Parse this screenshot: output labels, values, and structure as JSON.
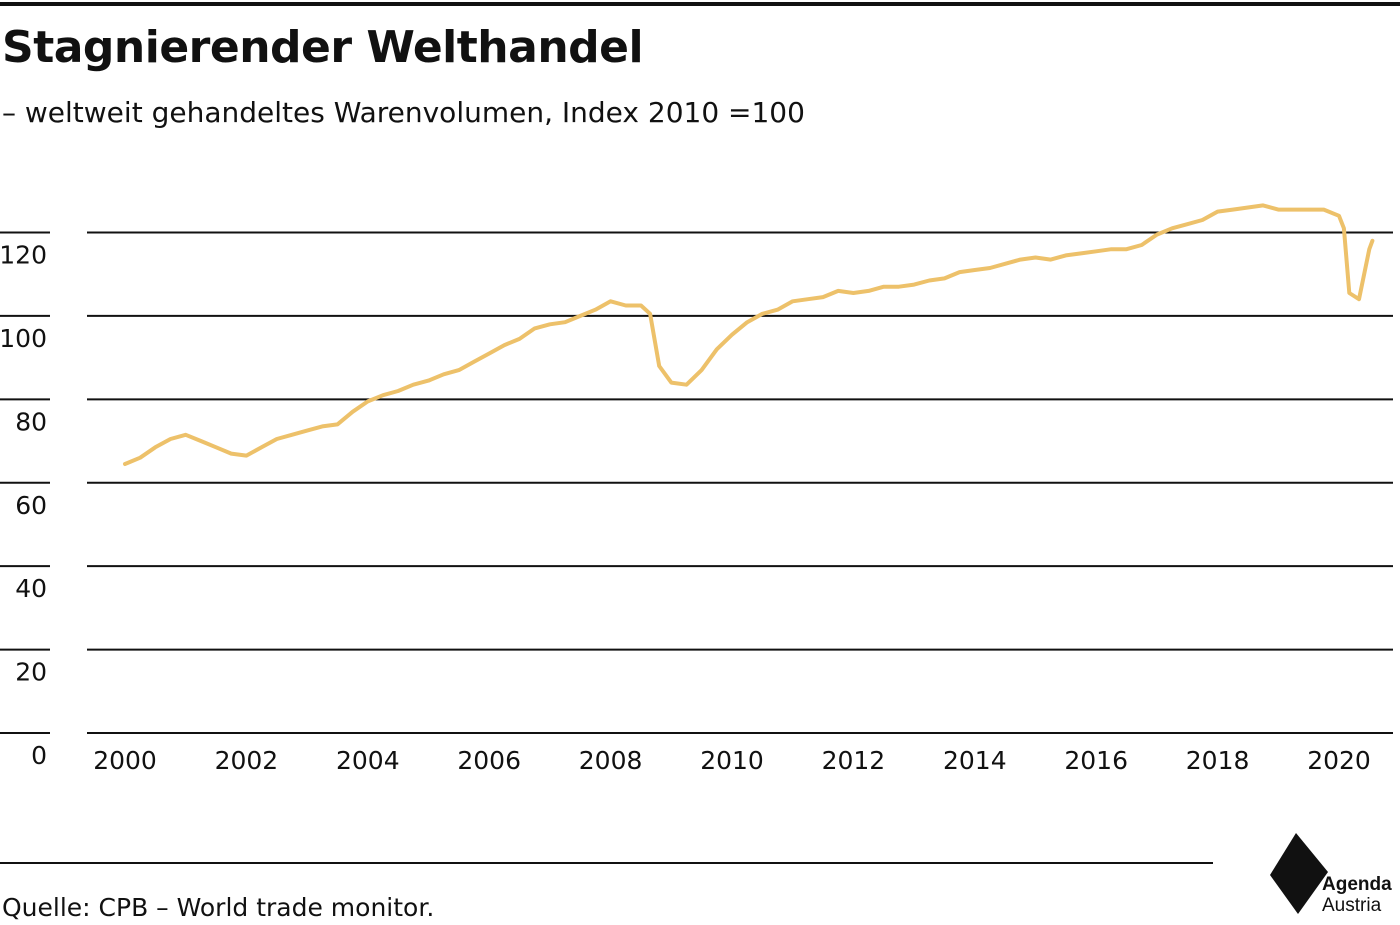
{
  "header": {
    "title": "Stagnierender Welthandel",
    "subtitle": "– weltweit gehandeltes Warenvolumen, Index 2010 =100"
  },
  "footer": {
    "source": "Quelle: CPB – World trade monitor."
  },
  "logo": {
    "line1": "Agenda",
    "line2": "Austria"
  },
  "colors": {
    "line": "#EDC16A",
    "grid": "#111111",
    "text": "#111111"
  },
  "chart_data": {
    "type": "line",
    "title": "Stagnierender Welthandel",
    "subtitle": "– weltweit gehandeltes Warenvolumen, Index 2010 =100",
    "xlabel": "",
    "ylabel": "",
    "xlim": [
      2000,
      2020.5
    ],
    "ylim": [
      0,
      130
    ],
    "yticks": [
      0,
      20,
      40,
      60,
      80,
      100,
      120
    ],
    "xticks": [
      2000,
      2002,
      2004,
      2006,
      2008,
      2010,
      2012,
      2014,
      2016,
      2018,
      2020
    ],
    "grid": "horizontal",
    "legend": "none",
    "series": [
      {
        "values": [
          [
            2000.0,
            64.5
          ],
          [
            2000.25,
            66
          ],
          [
            2000.5,
            68.5
          ],
          [
            2000.75,
            70.5
          ],
          [
            2001.0,
            71.5
          ],
          [
            2001.25,
            70
          ],
          [
            2001.5,
            68.5
          ],
          [
            2001.75,
            67
          ],
          [
            2002.0,
            66.5
          ],
          [
            2002.25,
            68.5
          ],
          [
            2002.5,
            70.5
          ],
          [
            2002.75,
            71.5
          ],
          [
            2003.0,
            72.5
          ],
          [
            2003.25,
            73.5
          ],
          [
            2003.5,
            74
          ],
          [
            2003.75,
            77
          ],
          [
            2004.0,
            79.5
          ],
          [
            2004.25,
            81
          ],
          [
            2004.5,
            82
          ],
          [
            2004.75,
            83.5
          ],
          [
            2005.0,
            84.5
          ],
          [
            2005.25,
            86
          ],
          [
            2005.5,
            87
          ],
          [
            2005.75,
            89
          ],
          [
            2006.0,
            91
          ],
          [
            2006.25,
            93
          ],
          [
            2006.5,
            94.5
          ],
          [
            2006.75,
            97
          ],
          [
            2007.0,
            98
          ],
          [
            2007.25,
            98.5
          ],
          [
            2007.5,
            100
          ],
          [
            2007.75,
            101.5
          ],
          [
            2008.0,
            103.5
          ],
          [
            2008.25,
            102.5
          ],
          [
            2008.5,
            102.5
          ],
          [
            2008.65,
            100.5
          ],
          [
            2008.8,
            88
          ],
          [
            2009.0,
            84
          ],
          [
            2009.25,
            83.5
          ],
          [
            2009.5,
            87
          ],
          [
            2009.75,
            92
          ],
          [
            2010.0,
            95.5
          ],
          [
            2010.25,
            98.5
          ],
          [
            2010.5,
            100.5
          ],
          [
            2010.75,
            101.5
          ],
          [
            2011.0,
            103.5
          ],
          [
            2011.25,
            104
          ],
          [
            2011.5,
            104.5
          ],
          [
            2011.75,
            106
          ],
          [
            2012.0,
            105.5
          ],
          [
            2012.25,
            106
          ],
          [
            2012.5,
            107
          ],
          [
            2012.75,
            107
          ],
          [
            2013.0,
            107.5
          ],
          [
            2013.25,
            108.5
          ],
          [
            2013.5,
            109
          ],
          [
            2013.75,
            110.5
          ],
          [
            2014.0,
            111
          ],
          [
            2014.25,
            111.5
          ],
          [
            2014.5,
            112.5
          ],
          [
            2014.75,
            113.5
          ],
          [
            2015.0,
            114
          ],
          [
            2015.25,
            113.5
          ],
          [
            2015.5,
            114.5
          ],
          [
            2015.75,
            115
          ],
          [
            2016.0,
            115.5
          ],
          [
            2016.25,
            116
          ],
          [
            2016.5,
            116
          ],
          [
            2016.75,
            117
          ],
          [
            2017.0,
            119.5
          ],
          [
            2017.25,
            121
          ],
          [
            2017.5,
            122
          ],
          [
            2017.75,
            123
          ],
          [
            2018.0,
            125
          ],
          [
            2018.25,
            125.5
          ],
          [
            2018.5,
            126
          ],
          [
            2018.75,
            126.5
          ],
          [
            2019.0,
            125.5
          ],
          [
            2019.25,
            125.5
          ],
          [
            2019.5,
            125.5
          ],
          [
            2019.75,
            125.5
          ],
          [
            2020.0,
            124
          ],
          [
            2020.08,
            121
          ],
          [
            2020.17,
            105.5
          ],
          [
            2020.33,
            104
          ],
          [
            2020.5,
            116
          ],
          [
            2020.55,
            118
          ]
        ]
      }
    ]
  }
}
